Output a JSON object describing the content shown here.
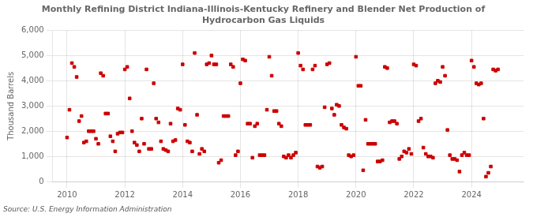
{
  "chart_data": {
    "type": "scatter",
    "title": "Monthly Refining District Indiana-Illinois-Kentucky Refinery and Blender Net Production of\nHydrocarbon Gas Liquids",
    "ylabel": "Thousand Barrels",
    "source": "Source: U.S. Energy Information Administration",
    "color": "#CC0000",
    "marker": "square",
    "grid": true,
    "xlim": [
      2009.5,
      2025.8
    ],
    "xticks": [
      2010,
      2012,
      2014,
      2016,
      2018,
      2020,
      2022,
      2024
    ],
    "ylim": [
      0,
      6000
    ],
    "yticks": [
      0,
      {
        "value": 1000,
        "label": "1,000"
      },
      {
        "value": 2000,
        "label": "2,000"
      },
      {
        "value": 3000,
        "label": "3,000"
      },
      {
        "value": 4000,
        "label": "4,000"
      },
      {
        "value": 5000,
        "label": "5,000"
      },
      {
        "value": 6000,
        "label": "6,000"
      }
    ],
    "x": [
      2010.0,
      2010.083,
      2010.167,
      2010.25,
      2010.333,
      2010.417,
      2010.5,
      2010.583,
      2010.667,
      2010.75,
      2010.833,
      2010.917,
      2011.0,
      2011.083,
      2011.167,
      2011.25,
      2011.333,
      2011.417,
      2011.5,
      2011.583,
      2011.667,
      2011.75,
      2011.833,
      2011.917,
      2012.0,
      2012.083,
      2012.167,
      2012.25,
      2012.333,
      2012.417,
      2012.5,
      2012.583,
      2012.667,
      2012.75,
      2012.833,
      2012.917,
      2013.0,
      2013.083,
      2013.167,
      2013.25,
      2013.333,
      2013.417,
      2013.5,
      2013.583,
      2013.667,
      2013.75,
      2013.833,
      2013.917,
      2014.0,
      2014.083,
      2014.167,
      2014.25,
      2014.333,
      2014.417,
      2014.5,
      2014.583,
      2014.667,
      2014.75,
      2014.833,
      2014.917,
      2015.0,
      2015.083,
      2015.167,
      2015.25,
      2015.333,
      2015.417,
      2015.5,
      2015.583,
      2015.667,
      2015.75,
      2015.833,
      2015.917,
      2016.0,
      2016.083,
      2016.167,
      2016.25,
      2016.333,
      2016.417,
      2016.5,
      2016.583,
      2016.667,
      2016.75,
      2016.833,
      2016.917,
      2017.0,
      2017.083,
      2017.167,
      2017.25,
      2017.333,
      2017.417,
      2017.5,
      2017.583,
      2017.667,
      2017.75,
      2017.833,
      2017.917,
      2018.0,
      2018.083,
      2018.167,
      2018.25,
      2018.333,
      2018.417,
      2018.5,
      2018.583,
      2018.667,
      2018.75,
      2018.833,
      2018.917,
      2019.0,
      2019.083,
      2019.167,
      2019.25,
      2019.333,
      2019.417,
      2019.5,
      2019.583,
      2019.667,
      2019.75,
      2019.833,
      2019.917,
      2020.0,
      2020.083,
      2020.167,
      2020.25,
      2020.333,
      2020.417,
      2020.5,
      2020.583,
      2020.667,
      2020.75,
      2020.833,
      2020.917,
      2021.0,
      2021.083,
      2021.167,
      2021.25,
      2021.333,
      2021.417,
      2021.5,
      2021.583,
      2021.667,
      2021.75,
      2021.833,
      2021.917,
      2022.0,
      2022.083,
      2022.167,
      2022.25,
      2022.333,
      2022.417,
      2022.5,
      2022.583,
      2022.667,
      2022.75,
      2022.833,
      2022.917,
      2023.0,
      2023.083,
      2023.167,
      2023.25,
      2023.333,
      2023.417,
      2023.5,
      2023.583,
      2023.667,
      2023.75,
      2023.833,
      2023.917,
      2024.0,
      2024.083,
      2024.167,
      2024.25,
      2024.333,
      2024.417,
      2024.5,
      2024.583,
      2024.667,
      2024.75,
      2024.833,
      2024.917
    ],
    "values": [
      1750,
      2850,
      4700,
      4550,
      4150,
      2400,
      2600,
      1550,
      1600,
      2000,
      2000,
      2000,
      1700,
      1500,
      4300,
      4200,
      2700,
      2700,
      1800,
      1600,
      1200,
      1900,
      1950,
      1950,
      4450,
      4550,
      3300,
      2000,
      1550,
      1450,
      1200,
      2500,
      1500,
      4450,
      1300,
      1300,
      3900,
      2500,
      2350,
      1600,
      1300,
      1250,
      1200,
      2300,
      1600,
      1650,
      2900,
      2850,
      4650,
      2250,
      1600,
      1550,
      1200,
      5100,
      2650,
      1100,
      1300,
      1200,
      4650,
      4700,
      5000,
      4650,
      4650,
      750,
      850,
      2600,
      2600,
      2600,
      4650,
      4550,
      1050,
      1200,
      3900,
      4850,
      4800,
      2300,
      2300,
      950,
      2200,
      2300,
      1050,
      1050,
      1050,
      2850,
      4950,
      4200,
      2800,
      2800,
      2300,
      2200,
      1000,
      950,
      1050,
      950,
      1050,
      1150,
      5100,
      4600,
      4450,
      2250,
      2250,
      2250,
      4450,
      4600,
      600,
      550,
      600,
      2950,
      4650,
      4700,
      2900,
      2650,
      3050,
      3000,
      2250,
      2150,
      2100,
      1050,
      1000,
      1050,
      4950,
      3800,
      3800,
      450,
      2450,
      1500,
      1500,
      1500,
      1500,
      800,
      800,
      850,
      4550,
      4500,
      2350,
      2400,
      2400,
      2300,
      900,
      1000,
      1200,
      1150,
      1300,
      1100,
      4650,
      4600,
      2400,
      2500,
      1350,
      1100,
      1000,
      1000,
      950,
      3900,
      4000,
      3950,
      4550,
      4200,
      2050,
      1050,
      900,
      900,
      850,
      400,
      1050,
      1150,
      1050,
      1050,
      4800,
      4550,
      3900,
      3850,
      3900,
      2500,
      200,
      350,
      600,
      4450,
      4400,
      4450
    ]
  }
}
